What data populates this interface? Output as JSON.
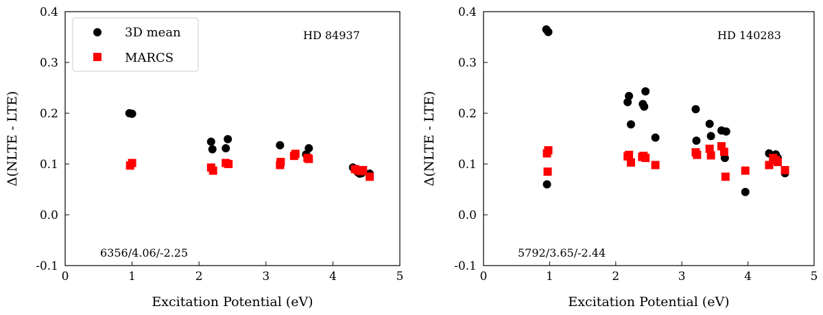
{
  "chart_data": [
    {
      "type": "scatter",
      "star": "HD 84937",
      "params": "6356/4.06/-2.25",
      "xlabel": "Excitation Potential (eV)",
      "ylabel": "Δ(NLTE - LTE)",
      "xlim": [
        0,
        5
      ],
      "ylim": [
        -0.1,
        0.4
      ],
      "xticks": [
        "0",
        "1",
        "2",
        "3",
        "4",
        "5"
      ],
      "yticks": [
        "-0.1",
        "0.0",
        "0.1",
        "0.2",
        "0.3",
        "0.4"
      ],
      "legend": {
        "position": "top-left",
        "entries": [
          "3D mean",
          "MARCS"
        ]
      },
      "series": [
        {
          "name": "3D mean",
          "marker": "circle",
          "color": "#000000",
          "x": [
            0.96,
            1.0,
            2.18,
            2.2,
            2.4,
            2.43,
            3.21,
            3.42,
            3.6,
            3.64,
            4.3,
            4.37,
            4.4,
            4.43,
            4.55
          ],
          "y": [
            0.2,
            0.199,
            0.144,
            0.129,
            0.131,
            0.149,
            0.137,
            0.118,
            0.119,
            0.131,
            0.093,
            0.084,
            0.081,
            0.082,
            0.081
          ]
        },
        {
          "name": "MARCS",
          "marker": "square",
          "color": "#ff0000",
          "x": [
            0.97,
            1.0,
            2.18,
            2.21,
            2.4,
            2.44,
            3.21,
            3.22,
            3.42,
            3.44,
            3.62,
            3.64,
            4.33,
            4.38,
            4.42,
            4.45,
            4.55
          ],
          "y": [
            0.097,
            0.102,
            0.093,
            0.087,
            0.102,
            0.1,
            0.098,
            0.104,
            0.116,
            0.12,
            0.112,
            0.11,
            0.09,
            0.087,
            0.086,
            0.088,
            0.075
          ]
        }
      ]
    },
    {
      "type": "scatter",
      "star": "HD 140283",
      "params": "5792/3.65/-2.44",
      "xlabel": "Excitation Potential (eV)",
      "ylabel": "Δ(NLTE - LTE)",
      "xlim": [
        0,
        5
      ],
      "ylim": [
        -0.1,
        0.4
      ],
      "xticks": [
        "0",
        "1",
        "2",
        "3",
        "4",
        "5"
      ],
      "yticks": [
        "-0.1",
        "0.0",
        "0.1",
        "0.2",
        "0.3",
        "0.4"
      ],
      "series": [
        {
          "name": "3D mean",
          "marker": "circle",
          "color": "#000000",
          "x": [
            0.95,
            0.98,
            0.96,
            2.18,
            2.2,
            2.23,
            2.41,
            2.43,
            2.45,
            2.6,
            3.21,
            3.22,
            3.42,
            3.44,
            3.6,
            3.67,
            3.65,
            3.96,
            4.32,
            4.38,
            4.42,
            4.45,
            4.56
          ],
          "y": [
            0.365,
            0.36,
            0.06,
            0.222,
            0.234,
            0.178,
            0.218,
            0.213,
            0.243,
            0.152,
            0.208,
            0.146,
            0.179,
            0.155,
            0.166,
            0.164,
            0.112,
            0.045,
            0.121,
            0.115,
            0.119,
            0.112,
            0.082
          ]
        },
        {
          "name": "MARCS",
          "marker": "square",
          "color": "#ff0000",
          "x": [
            0.96,
            0.98,
            0.97,
            2.18,
            2.2,
            2.23,
            2.4,
            2.42,
            2.45,
            2.6,
            3.21,
            3.23,
            3.42,
            3.44,
            3.6,
            3.64,
            3.66,
            3.96,
            4.32,
            4.38,
            4.42,
            4.45,
            4.56
          ],
          "y": [
            0.121,
            0.127,
            0.085,
            0.115,
            0.118,
            0.103,
            0.114,
            0.116,
            0.112,
            0.098,
            0.123,
            0.118,
            0.13,
            0.117,
            0.135,
            0.124,
            0.075,
            0.087,
            0.098,
            0.112,
            0.108,
            0.104,
            0.088
          ]
        }
      ]
    }
  ]
}
